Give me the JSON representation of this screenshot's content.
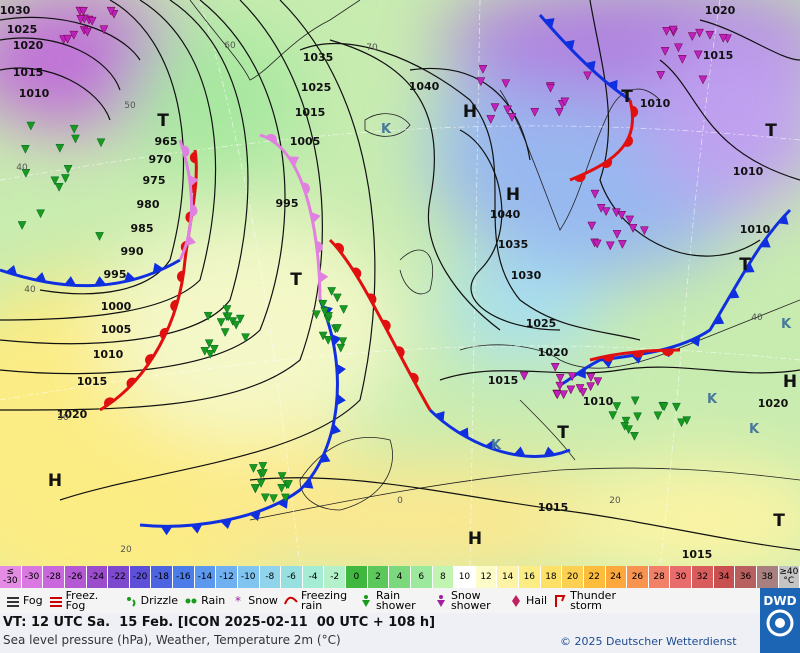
{
  "map": {
    "isobar_labels": [
      "1030",
      "1025",
      "1020",
      "1015",
      "1010",
      "1035",
      "1025",
      "1015",
      "1005",
      "1040",
      "965",
      "970",
      "975",
      "980",
      "985",
      "990",
      "995",
      "1000",
      "1005",
      "1010",
      "1015",
      "1020",
      "995",
      "1040",
      "1035",
      "1030",
      "1025",
      "1020",
      "1015",
      "1010",
      "1020",
      "1015",
      "1010",
      "1010",
      "1010",
      "1020",
      "1015",
      "1015"
    ],
    "pressure_centers": [
      "T",
      "H",
      "K",
      "H",
      "T",
      "T",
      "T",
      "T",
      "H",
      "H",
      "H",
      "T",
      "T",
      "K",
      "K",
      "K",
      "K"
    ],
    "temperature_labels": [
      "60",
      "70",
      "50",
      "40",
      "40",
      "30",
      "20",
      "20",
      "0",
      "40"
    ]
  },
  "scale": {
    "labels": [
      "≤ -30",
      "-30",
      "-28",
      "-26",
      "-24",
      "-22",
      "-20",
      "-18",
      "-16",
      "-14",
      "-12",
      "-10",
      "-8",
      "-6",
      "-4",
      "-2",
      "0",
      "2",
      "4",
      "6",
      "8",
      "10",
      "12",
      "14",
      "16",
      "18",
      "20",
      "22",
      "24",
      "26",
      "28",
      "30",
      "32",
      "34",
      "36",
      "38",
      "≥40 °C"
    ],
    "colors": [
      "#e48ce4",
      "#d878e0",
      "#c868dc",
      "#b458d4",
      "#9a4ccc",
      "#7c48cc",
      "#5c50d8",
      "#4c64e0",
      "#4c7ce8",
      "#5c98ee",
      "#70b0f0",
      "#80c4f0",
      "#90d4ec",
      "#98e0e0",
      "#a4ecd4",
      "#b4f0c8",
      "#40b840",
      "#5cc85c",
      "#7cd87c",
      "#9ce89c",
      "#c0f4b0",
      "#ffffff",
      "#fcfcc8",
      "#fcf4a4",
      "#fcec84",
      "#fce068",
      "#fcd050",
      "#fcbc3c",
      "#fca83c",
      "#f89450",
      "#f08068",
      "#e86c6c",
      "#d85c5c",
      "#c85050",
      "#b86060",
      "#a88080",
      "#c4c4c4"
    ]
  },
  "legend": {
    "items": [
      "Fog",
      "Freez. Fog",
      "Drizzle",
      "Rain",
      "Snow",
      "Freezing rain",
      "Rain shower",
      "Snow shower",
      "Hail",
      "Thunder storm"
    ]
  },
  "footer": {
    "valid_time": "VT: 12 UTC Sa.  15 Feb. [ICON 2025-02-11  00 UTC + 108 h]",
    "description": "Sea level pressure (hPa), Weather, Temperature 2m (°C)",
    "copyright": "© 2025 Deutscher Wetterdienst",
    "logo": "DWD"
  }
}
